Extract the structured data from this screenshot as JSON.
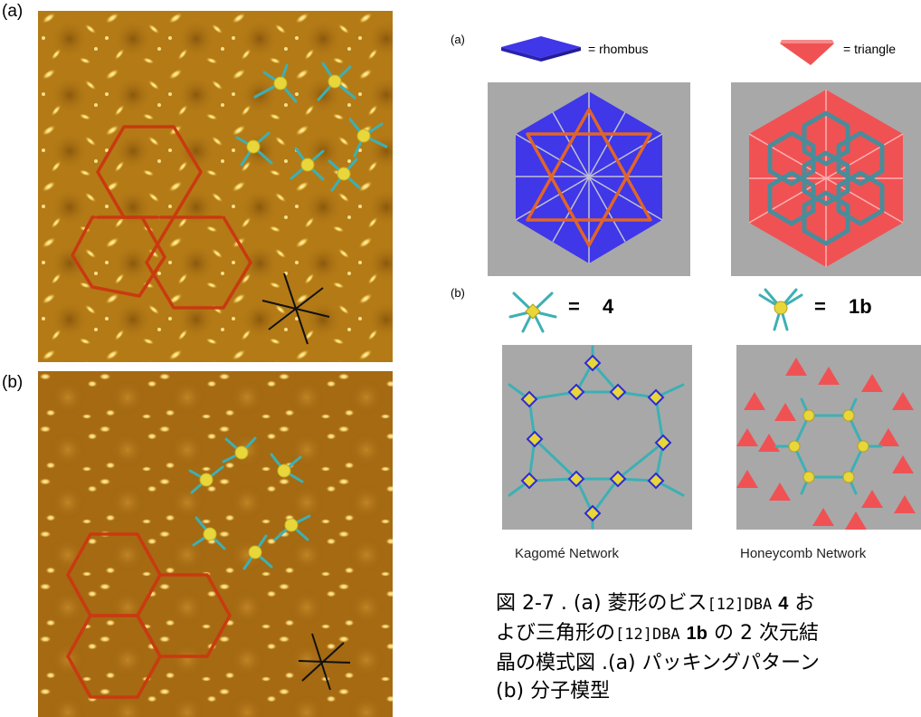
{
  "left_figure": {
    "label_a": "(a)",
    "label_b": "(b)"
  },
  "right_figure": {
    "label_a": "(a)",
    "label_b": "(b)",
    "legend": {
      "rhombus_text": "= rhombus",
      "triangle_text": "= triangle",
      "eq_4": "=",
      "val_4": "4",
      "eq_1b": "=",
      "val_1b": "1b"
    },
    "network_titles": {
      "kagome": "Kagomé Network",
      "honeycomb": "Honeycomb Network"
    }
  },
  "caption": {
    "line1_a": "図 2-7 . (a) 菱形のビス",
    "line1_b": "[12]DBA",
    "line1_c": "4",
    "line1_d": " お",
    "line2_a": "よび三角形の",
    "line2_b": "[12]DBA",
    "line2_c": "1b",
    "line2_d": " の 2 次元結",
    "line3": "晶の模式図 .(a) パッキングパターン",
    "line4": "(b) 分子模型"
  },
  "colors": {
    "stm_bg": "#b87e18",
    "stm_highlight": "#f6e08a",
    "outline_red": "#c93a10",
    "molecule_cyan": "#3db0b4",
    "molecule_core": "#e8d63a",
    "rhombus_blue": "#3f37e8",
    "triangle_red": "#f05254",
    "panel_grey": "#a8a8a8"
  }
}
